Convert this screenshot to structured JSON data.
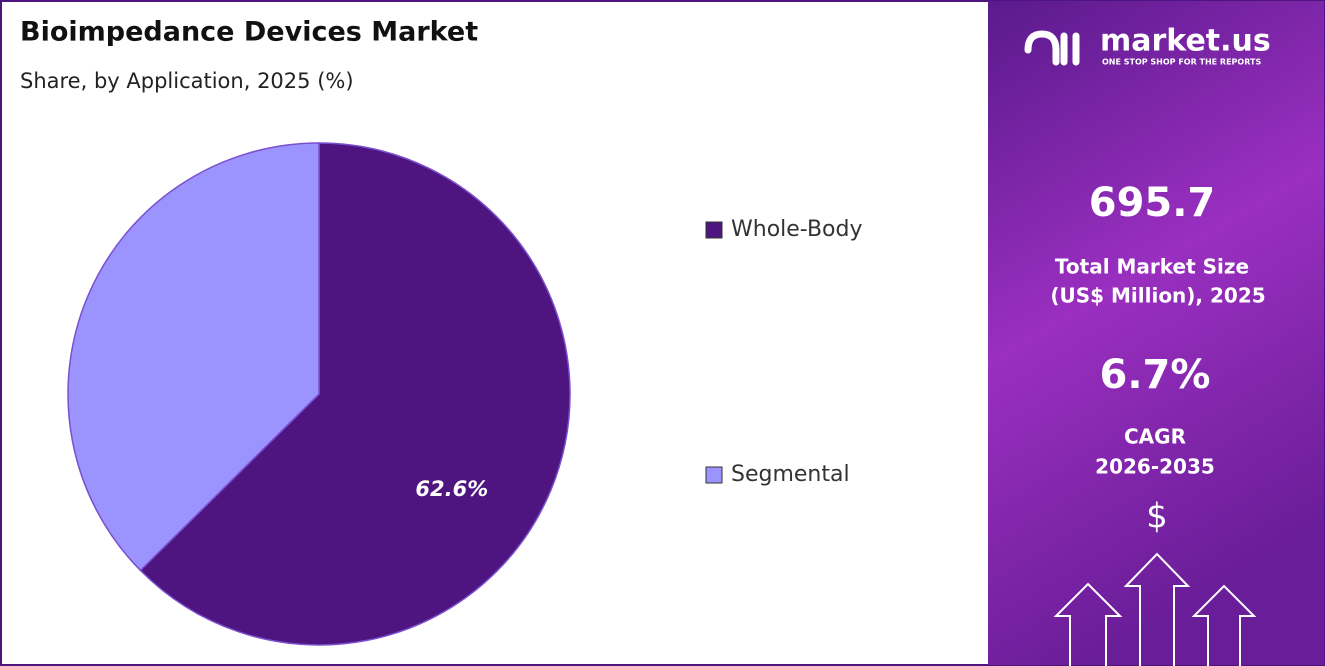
{
  "chart_data": {
    "type": "pie",
    "title": "Bioimpedance Devices Market",
    "subtitle": "Share, by Application, 2025 (%)",
    "categories": [
      "Whole-Body",
      "Segmental"
    ],
    "values": [
      62.6,
      37.4
    ],
    "value_labels": [
      "62.6%",
      null
    ],
    "colors": [
      "#4e1580",
      "#9b94ff"
    ]
  },
  "sidebar": {
    "brand": "market.us",
    "tagline": "ONE STOP SHOP FOR THE REPORTS",
    "market_size": "695.7",
    "market_size_label": [
      "Total Market Size",
      "(US$ Million), 2025"
    ],
    "cagr": "6.7%",
    "cagr_label": [
      "CAGR",
      "2026-2035"
    ],
    "currency_icon": "$"
  }
}
